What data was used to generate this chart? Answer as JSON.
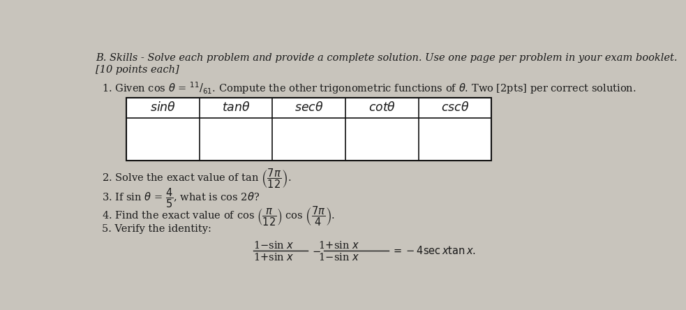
{
  "bg_color": "#c8c4bc",
  "paper_color": "#e8e5df",
  "title_line1": "B. Skills - Solve each problem and provide a complete solution. Use one page per problem in your exam booklet.",
  "title_line2": "[10 points each]",
  "q1_text": "1. Given cos θ = ¹¹/₆₁. Compute the other trigonometric functions of θ. Two [2pts] per correct solution.",
  "table_headers": [
    "sin θ",
    "tan θ",
    "sec θ",
    "cot θ",
    "csc θ"
  ],
  "q2_text": "2. Solve the exact value of tan (⁷π/₁₂).",
  "q3_text": "3. If sin θ = ⁴/₅, what is cos 2θ?",
  "q4_text": "4. Find the exact value of cos (π/₁₂) cos (⁷π/₄).",
  "q5_text": "5. Verify the identity:",
  "fs": 10.5
}
